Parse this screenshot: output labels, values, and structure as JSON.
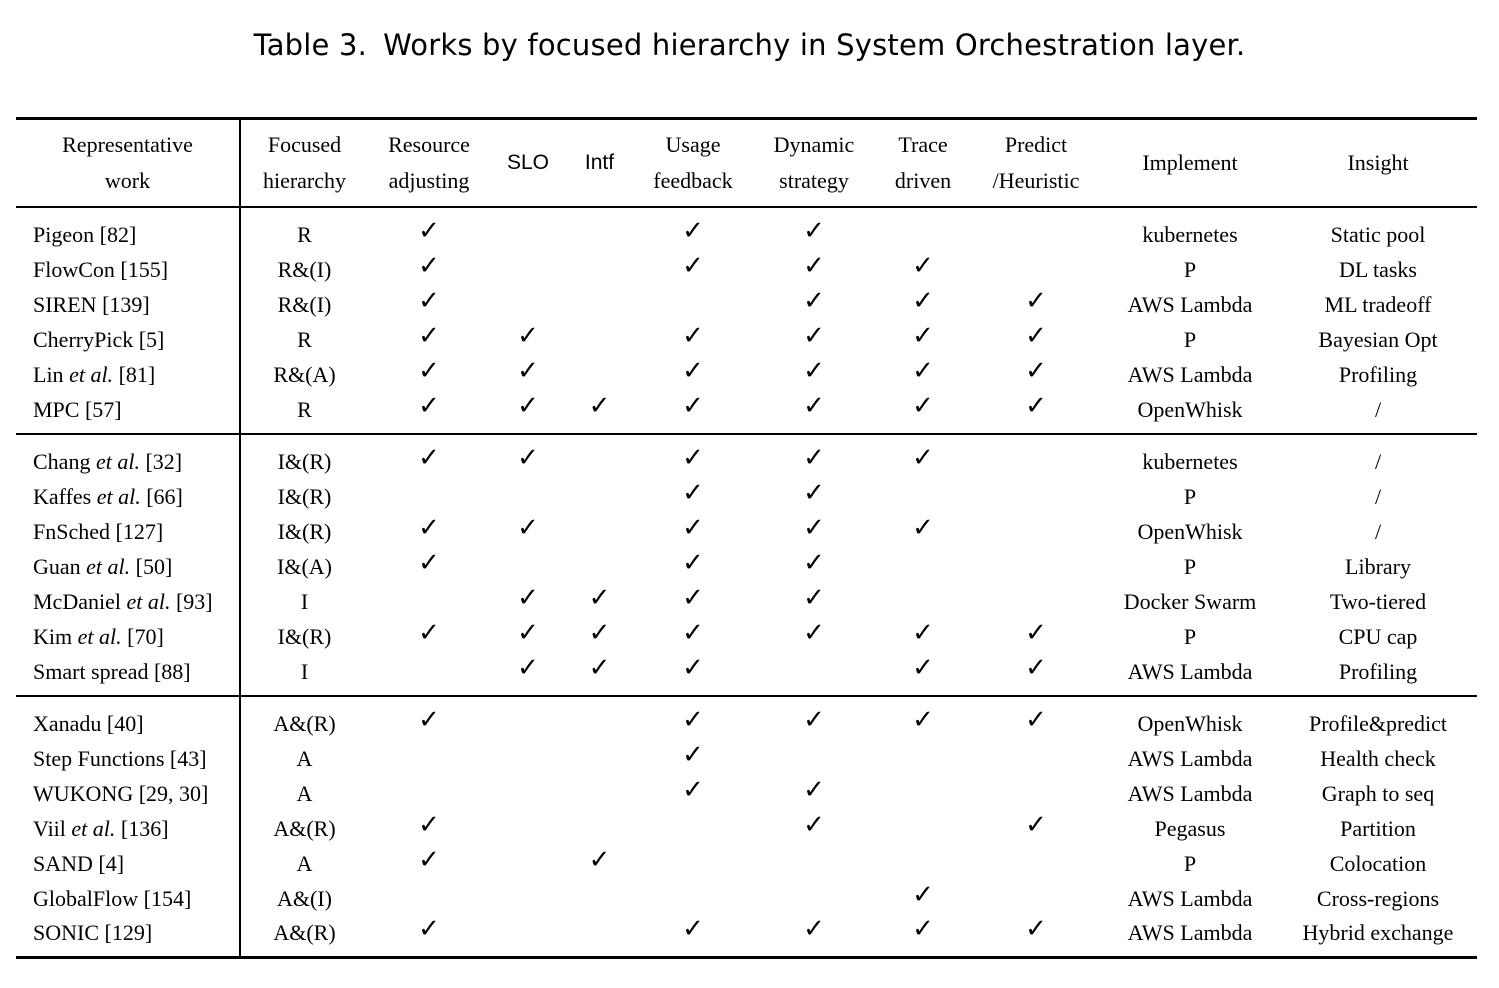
{
  "caption": {
    "number": "Table 3.",
    "text": "Works by focused hierarchy in System Orchestration layer."
  },
  "check_symbol": "✓",
  "headers": [
    {
      "key": "work",
      "lines": [
        "Representative",
        "work"
      ]
    },
    {
      "key": "hierarchy",
      "lines": [
        "Focused",
        "hierarchy"
      ]
    },
    {
      "key": "resource",
      "lines": [
        "Resource",
        "adjusting"
      ]
    },
    {
      "key": "slo",
      "lines": [
        "SLO"
      ]
    },
    {
      "key": "intf",
      "lines": [
        "Intf"
      ]
    },
    {
      "key": "usage",
      "lines": [
        "Usage",
        "feedback"
      ]
    },
    {
      "key": "dynamic",
      "lines": [
        "Dynamic",
        "strategy"
      ]
    },
    {
      "key": "trace",
      "lines": [
        "Trace",
        "driven"
      ]
    },
    {
      "key": "predict",
      "lines": [
        "Predict",
        "/Heuristic"
      ]
    },
    {
      "key": "implement",
      "lines": [
        "Implement"
      ]
    },
    {
      "key": "insight",
      "lines": [
        "Insight"
      ]
    }
  ],
  "groups": [
    [
      {
        "name": "Pigeon",
        "etal": false,
        "ref": "[82]",
        "hierarchy": "R",
        "checks": [
          1,
          0,
          0,
          1,
          1,
          0,
          0
        ],
        "implement": "kubernetes",
        "insight": "Static pool"
      },
      {
        "name": "FlowCon",
        "etal": false,
        "ref": "[155]",
        "hierarchy": "R&(I)",
        "checks": [
          1,
          0,
          0,
          1,
          1,
          1,
          0
        ],
        "implement": "P",
        "insight": "DL tasks"
      },
      {
        "name": "SIREN",
        "etal": false,
        "ref": "[139]",
        "hierarchy": "R&(I)",
        "checks": [
          1,
          0,
          0,
          0,
          1,
          1,
          1
        ],
        "implement": "AWS Lambda",
        "insight": "ML tradeoff"
      },
      {
        "name": "CherryPick",
        "etal": false,
        "ref": "[5]",
        "hierarchy": "R",
        "checks": [
          1,
          1,
          0,
          1,
          1,
          1,
          1
        ],
        "implement": "P",
        "insight": "Bayesian Opt"
      },
      {
        "name": "Lin",
        "etal": true,
        "ref": "[81]",
        "hierarchy": "R&(A)",
        "checks": [
          1,
          1,
          0,
          1,
          1,
          1,
          1
        ],
        "implement": "AWS Lambda",
        "insight": "Profiling"
      },
      {
        "name": "MPC",
        "etal": false,
        "ref": "[57]",
        "hierarchy": "R",
        "checks": [
          1,
          1,
          1,
          1,
          1,
          1,
          1
        ],
        "implement": "OpenWhisk",
        "insight": "/"
      }
    ],
    [
      {
        "name": "Chang",
        "etal": true,
        "ref": "[32]",
        "hierarchy": "I&(R)",
        "checks": [
          1,
          1,
          0,
          1,
          1,
          1,
          0
        ],
        "implement": "kubernetes",
        "insight": "/"
      },
      {
        "name": "Kaffes",
        "etal": true,
        "ref": "[66]",
        "hierarchy": "I&(R)",
        "checks": [
          0,
          0,
          0,
          1,
          1,
          0,
          0
        ],
        "implement": "P",
        "insight": "/"
      },
      {
        "name": "FnSched",
        "etal": false,
        "ref": "[127]",
        "hierarchy": "I&(R)",
        "checks": [
          1,
          1,
          0,
          1,
          1,
          1,
          0
        ],
        "implement": "OpenWhisk",
        "insight": "/"
      },
      {
        "name": "Guan",
        "etal": true,
        "ref": "[50]",
        "hierarchy": "I&(A)",
        "checks": [
          1,
          0,
          0,
          1,
          1,
          0,
          0
        ],
        "implement": "P",
        "insight": "Library"
      },
      {
        "name": "McDaniel",
        "etal": true,
        "ref": "[93]",
        "hierarchy": "I",
        "checks": [
          0,
          1,
          1,
          1,
          1,
          0,
          0
        ],
        "implement": "Docker Swarm",
        "insight": "Two-tiered"
      },
      {
        "name": "Kim",
        "etal": true,
        "ref": "[70]",
        "hierarchy": "I&(R)",
        "checks": [
          1,
          1,
          1,
          1,
          1,
          1,
          1
        ],
        "implement": "P",
        "insight": "CPU cap"
      },
      {
        "name": "Smart spread",
        "etal": false,
        "ref": "[88]",
        "hierarchy": "I",
        "checks": [
          0,
          1,
          1,
          1,
          0,
          1,
          1
        ],
        "implement": "AWS Lambda",
        "insight": "Profiling"
      }
    ],
    [
      {
        "name": "Xanadu",
        "etal": false,
        "ref": "[40]",
        "hierarchy": "A&(R)",
        "checks": [
          1,
          0,
          0,
          1,
          1,
          1,
          1
        ],
        "implement": "OpenWhisk",
        "insight": "Profile&predict"
      },
      {
        "name": "Step Functions",
        "etal": false,
        "ref": "[43]",
        "hierarchy": "A",
        "checks": [
          0,
          0,
          0,
          1,
          0,
          0,
          0
        ],
        "implement": "AWS Lambda",
        "insight": "Health check"
      },
      {
        "name": "WUKONG",
        "etal": false,
        "ref": "[29, 30]",
        "hierarchy": "A",
        "checks": [
          0,
          0,
          0,
          1,
          1,
          0,
          0
        ],
        "implement": "AWS Lambda",
        "insight": "Graph to seq"
      },
      {
        "name": "Viil",
        "etal": true,
        "ref": "[136]",
        "hierarchy": "A&(R)",
        "checks": [
          1,
          0,
          0,
          0,
          1,
          0,
          1
        ],
        "implement": "Pegasus",
        "insight": "Partition"
      },
      {
        "name": "SAND",
        "etal": false,
        "ref": "[4]",
        "hierarchy": "A",
        "checks": [
          1,
          0,
          1,
          0,
          0,
          0,
          0
        ],
        "implement": "P",
        "insight": "Colocation"
      },
      {
        "name": "GlobalFlow",
        "etal": false,
        "ref": "[154]",
        "hierarchy": "A&(I)",
        "checks": [
          0,
          0,
          0,
          0,
          0,
          1,
          0
        ],
        "implement": "AWS Lambda",
        "insight": "Cross-regions"
      },
      {
        "name": "SONIC",
        "etal": false,
        "ref": "[129]",
        "hierarchy": "A&(R)",
        "checks": [
          1,
          0,
          0,
          1,
          1,
          1,
          1
        ],
        "implement": "AWS Lambda",
        "insight": "Hybrid exchange"
      }
    ]
  ],
  "etal_text": "et al."
}
